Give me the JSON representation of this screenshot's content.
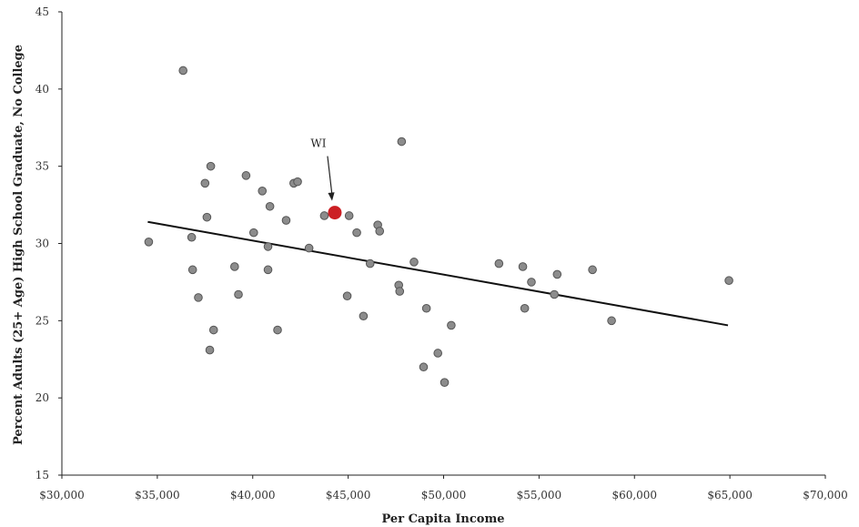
{
  "chart_data": {
    "type": "scatter",
    "title": "",
    "xlabel": "Per Capita Income",
    "ylabel": "Percent Adults (25+ Age) High School Graduate, No College",
    "xlim": [
      30000,
      70000
    ],
    "ylim": [
      15,
      45
    ],
    "x_ticks": [
      30000,
      35000,
      40000,
      45000,
      50000,
      55000,
      60000,
      65000,
      70000
    ],
    "x_tick_labels": [
      "$30,000",
      "$35,000",
      "$40,000",
      "$45,000",
      "$50,000",
      "$55,000",
      "$60,000",
      "$65,000",
      "$70,000"
    ],
    "y_ticks": [
      15,
      20,
      25,
      30,
      35,
      40,
      45
    ],
    "y_tick_labels": [
      "15",
      "20",
      "25",
      "30",
      "35",
      "40",
      "45"
    ],
    "grid": false,
    "legend": "none",
    "colors": {
      "points": "#8c8c8c",
      "point_edge": "#555555",
      "highlight": "#cc1f24",
      "trendline": "#111111",
      "axis": "#222222"
    },
    "series": [
      {
        "points": [
          [
            34550,
            30.1
          ],
          [
            36350,
            41.2
          ],
          [
            36800,
            30.4
          ],
          [
            36850,
            28.3
          ],
          [
            37150,
            26.5
          ],
          [
            37500,
            33.9
          ],
          [
            37600,
            31.7
          ],
          [
            37750,
            23.1
          ],
          [
            37800,
            35.0
          ],
          [
            37950,
            24.4
          ],
          [
            39050,
            28.5
          ],
          [
            39250,
            26.7
          ],
          [
            39650,
            34.4
          ],
          [
            40050,
            30.7
          ],
          [
            40500,
            33.4
          ],
          [
            40800,
            29.8
          ],
          [
            40800,
            28.3
          ],
          [
            40900,
            32.4
          ],
          [
            41300,
            24.4
          ],
          [
            41750,
            31.5
          ],
          [
            42150,
            33.9
          ],
          [
            42350,
            34.0
          ],
          [
            42950,
            29.7
          ],
          [
            43750,
            31.8
          ],
          [
            44950,
            26.6
          ],
          [
            45050,
            31.8
          ],
          [
            45450,
            30.7
          ],
          [
            45800,
            25.3
          ],
          [
            46150,
            28.7
          ],
          [
            46550,
            31.2
          ],
          [
            46650,
            30.8
          ],
          [
            47650,
            27.3
          ],
          [
            47700,
            26.9
          ],
          [
            47800,
            36.6
          ],
          [
            48450,
            28.8
          ],
          [
            48950,
            22.0
          ],
          [
            49100,
            25.8
          ],
          [
            49700,
            22.9
          ],
          [
            50050,
            21.0
          ],
          [
            50400,
            24.7
          ],
          [
            52900,
            28.7
          ],
          [
            54150,
            28.5
          ],
          [
            54250,
            25.8
          ],
          [
            54600,
            27.5
          ],
          [
            55800,
            26.7
          ],
          [
            55950,
            28.0
          ],
          [
            57800,
            28.3
          ],
          [
            58800,
            25.0
          ],
          [
            64950,
            27.6
          ]
        ]
      }
    ],
    "highlight": {
      "label": "WI",
      "x": 44300,
      "y": 32.0
    },
    "trendline": {
      "x": [
        34500,
        64900
      ],
      "y": [
        31.4,
        24.7
      ]
    }
  }
}
